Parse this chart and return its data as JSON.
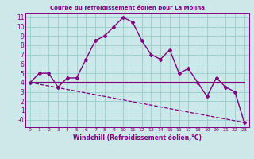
{
  "title": "Courbe du refroidissement éolien pour La Molina",
  "xlabel": "Windchill (Refroidissement éolien,°C)",
  "background_color": "#cce8e8",
  "line_color": "#800080",
  "grid_color": "#99cccc",
  "xlim": [
    -0.5,
    23.5
  ],
  "ylim": [
    -0.8,
    11.5
  ],
  "xticks": [
    0,
    1,
    2,
    3,
    4,
    5,
    6,
    7,
    8,
    9,
    10,
    11,
    12,
    13,
    14,
    15,
    16,
    17,
    18,
    19,
    20,
    21,
    22,
    23
  ],
  "yticks": [
    0,
    1,
    2,
    3,
    4,
    5,
    6,
    7,
    8,
    9,
    10,
    11
  ],
  "ytick_labels": [
    "-0",
    "1",
    "2",
    "3",
    "4",
    "5",
    "6",
    "7",
    "8",
    "9",
    "10",
    "11"
  ],
  "series1_x": [
    0,
    1,
    2,
    3,
    4,
    5,
    6,
    7,
    8,
    9,
    10,
    11,
    12,
    13,
    14,
    15,
    16,
    17,
    18,
    19,
    20,
    21,
    22,
    23
  ],
  "series1_y": [
    4.0,
    5.0,
    5.0,
    3.5,
    4.5,
    4.5,
    6.5,
    8.5,
    9.0,
    10.0,
    11.0,
    10.5,
    8.5,
    7.0,
    6.5,
    7.5,
    5.0,
    5.5,
    4.0,
    2.5,
    4.5,
    3.5,
    3.0,
    -0.3
  ],
  "series2_x": [
    0,
    23
  ],
  "series2_y": [
    4.0,
    4.0
  ],
  "series3_x": [
    0,
    23
  ],
  "series3_y": [
    4.0,
    -0.3
  ]
}
